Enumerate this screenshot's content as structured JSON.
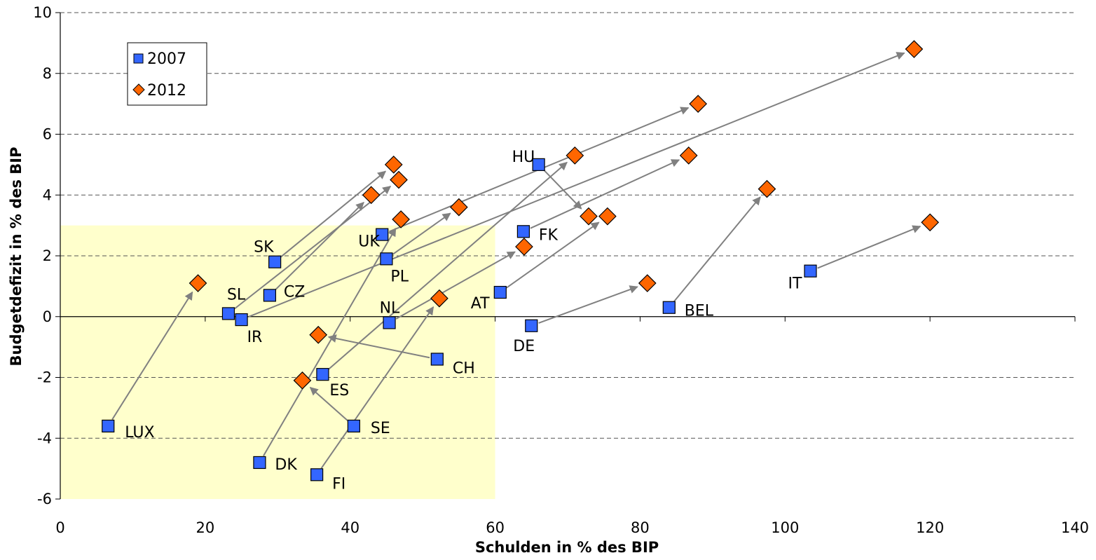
{
  "chart_data": {
    "type": "scatter",
    "title": "",
    "xlabel": "Schulden in % des BIP",
    "ylabel": "Budgetdefizit in % des BIP",
    "xlim": [
      0,
      140
    ],
    "ylim": [
      -6,
      10
    ],
    "x_ticks": [
      "0",
      "20",
      "40",
      "60",
      "80",
      "100",
      "120",
      "140"
    ],
    "y_ticks": [
      "-6",
      "-4",
      "-2",
      "0",
      "2",
      "4",
      "6",
      "8",
      "10"
    ],
    "grid": "horizontal dashed",
    "legend_position": "top-left",
    "highlight_region": {
      "x": [
        0,
        60
      ],
      "y": [
        -6,
        3
      ],
      "color": "#ffffcc"
    },
    "colors": {
      "s2007": "#3366ff",
      "s2012": "#ff6600",
      "arrow": "#808080"
    },
    "series": [
      {
        "name": "2007",
        "marker": "square",
        "points": [
          {
            "label": "LUX",
            "x": 6.6,
            "y": -3.6
          },
          {
            "label": "SL",
            "x": 23.2,
            "y": 0.1
          },
          {
            "label": "IR",
            "x": 25.0,
            "y": -0.1
          },
          {
            "label": "SK",
            "x": 29.6,
            "y": 1.8
          },
          {
            "label": "CZ",
            "x": 28.9,
            "y": 0.7
          },
          {
            "label": "DK",
            "x": 27.5,
            "y": -4.8
          },
          {
            "label": "FI",
            "x": 35.4,
            "y": -5.2
          },
          {
            "label": "ES",
            "x": 36.2,
            "y": -1.9
          },
          {
            "label": "SE",
            "x": 40.5,
            "y": -3.6
          },
          {
            "label": "UK",
            "x": 44.4,
            "y": 2.7
          },
          {
            "label": "PL",
            "x": 45.0,
            "y": 1.9
          },
          {
            "label": "NL",
            "x": 45.4,
            "y": -0.2
          },
          {
            "label": "CH",
            "x": 52.0,
            "y": -1.4
          },
          {
            "label": "AT",
            "x": 60.7,
            "y": 0.8
          },
          {
            "label": "FK",
            "x": 63.9,
            "y": 2.8
          },
          {
            "label": "DE",
            "x": 65.0,
            "y": -0.3
          },
          {
            "label": "HU",
            "x": 66.0,
            "y": 5.0
          },
          {
            "label": "BEL",
            "x": 84.0,
            "y": 0.3
          },
          {
            "label": "IT",
            "x": 103.5,
            "y": 1.5
          }
        ]
      },
      {
        "name": "2012",
        "marker": "diamond",
        "points": [
          {
            "label": "LUX",
            "x": 19.0,
            "y": 1.1
          },
          {
            "label": "SL",
            "x": 46.7,
            "y": 4.5
          },
          {
            "label": "IR",
            "x": 117.8,
            "y": 8.8
          },
          {
            "label": "SK",
            "x": 46.0,
            "y": 5.0
          },
          {
            "label": "CZ",
            "x": 42.9,
            "y": 4.0
          },
          {
            "label": "DK",
            "x": 47.0,
            "y": 3.2
          },
          {
            "label": "FI",
            "x": 52.3,
            "y": 0.6
          },
          {
            "label": "ES",
            "x": 71.0,
            "y": 5.3
          },
          {
            "label": "SE",
            "x": 33.4,
            "y": -2.1
          },
          {
            "label": "UK",
            "x": 88.0,
            "y": 7.0
          },
          {
            "label": "PL",
            "x": 55.0,
            "y": 3.6
          },
          {
            "label": "NL",
            "x": 64.0,
            "y": 2.3
          },
          {
            "label": "CH",
            "x": 35.6,
            "y": -0.6
          },
          {
            "label": "AT",
            "x": 75.5,
            "y": 3.3
          },
          {
            "label": "FK",
            "x": 86.7,
            "y": 5.3
          },
          {
            "label": "DE",
            "x": 81.0,
            "y": 1.1
          },
          {
            "label": "HU",
            "x": 72.9,
            "y": 3.3
          },
          {
            "label": "BEL",
            "x": 97.5,
            "y": 4.2
          },
          {
            "label": "IT",
            "x": 120.0,
            "y": 3.1
          }
        ]
      }
    ]
  }
}
